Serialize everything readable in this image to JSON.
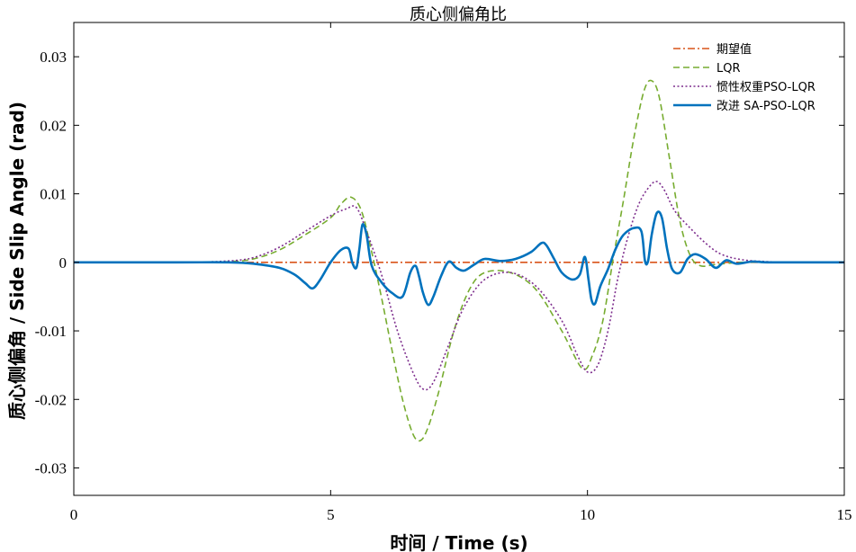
{
  "chart_data": {
    "type": "line",
    "title": "质心侧偏角比",
    "xlabel": "时间 / Time (s)",
    "ylabel": "质心侧偏角 / Side Slip Angle (rad)",
    "xlim": [
      0,
      15
    ],
    "ylim": [
      -0.034,
      0.035
    ],
    "xticks": [
      0,
      5,
      10,
      15
    ],
    "xtick_labels": [
      "0",
      "5",
      "10",
      "15"
    ],
    "yticks": [
      0.03,
      0.02,
      0.01,
      0,
      -0.01,
      -0.02,
      -0.03
    ],
    "ytick_labels": [
      "0.03",
      "0.02",
      "0.01",
      "0",
      "-0.01",
      "-0.02",
      "-0.03"
    ],
    "grid": false,
    "legend_position": "top-right",
    "series": [
      {
        "name": "期望值",
        "color": "#D95319",
        "style": "dashdot",
        "x": [
          0,
          15
        ],
        "y": [
          0,
          0
        ]
      },
      {
        "name": "LQR",
        "color": "#77AC30",
        "style": "dashed",
        "x": [
          0,
          2,
          3,
          3.5,
          4,
          4.5,
          5,
          5.2,
          5.4,
          5.6,
          5.8,
          6.0,
          6.2,
          6.4,
          6.6,
          6.75,
          6.9,
          7.1,
          7.4,
          7.7,
          8.0,
          8.5,
          9.0,
          9.5,
          9.9,
          10.1,
          10.3,
          10.5,
          10.7,
          10.9,
          11.1,
          11.25,
          11.4,
          11.6,
          11.8,
          12.0,
          12.2,
          12.5,
          13.0,
          13.5,
          14,
          15
        ],
        "y": [
          0,
          0,
          0.0001,
          0.0005,
          0.0018,
          0.004,
          0.0065,
          0.0085,
          0.0095,
          0.0075,
          0.0015,
          -0.0055,
          -0.013,
          -0.02,
          -0.025,
          -0.026,
          -0.024,
          -0.019,
          -0.01,
          -0.004,
          -0.0015,
          -0.0015,
          -0.004,
          -0.01,
          -0.0155,
          -0.0135,
          -0.0085,
          0.0005,
          0.009,
          0.018,
          0.025,
          0.0265,
          0.024,
          0.015,
          0.006,
          0.001,
          -0.0005,
          -0.0003,
          0,
          0,
          0,
          0
        ]
      },
      {
        "name": "惯性权重PSO-LQR",
        "color": "#7E2F8E",
        "style": "dotted",
        "x": [
          0,
          2,
          3,
          3.5,
          4,
          4.5,
          5,
          5.3,
          5.5,
          5.7,
          6.0,
          6.3,
          6.6,
          6.8,
          7.0,
          7.3,
          7.6,
          8.0,
          8.5,
          9.0,
          9.5,
          9.8,
          10.0,
          10.2,
          10.4,
          10.6,
          10.8,
          11.0,
          11.2,
          11.35,
          11.5,
          11.7,
          12.0,
          12.3,
          12.6,
          13.0,
          13.5,
          14,
          15
        ],
        "y": [
          0,
          0,
          0.0002,
          0.0007,
          0.0022,
          0.0045,
          0.0068,
          0.0078,
          0.008,
          0.0045,
          -0.002,
          -0.01,
          -0.016,
          -0.0185,
          -0.0175,
          -0.012,
          -0.0065,
          -0.0025,
          -0.0015,
          -0.0035,
          -0.0085,
          -0.0135,
          -0.016,
          -0.015,
          -0.01,
          -0.002,
          0.004,
          0.0085,
          0.011,
          0.0118,
          0.0105,
          0.0075,
          0.005,
          0.0028,
          0.0012,
          0.0004,
          0.0001,
          0,
          0
        ]
      },
      {
        "name": "改进 SA-PSO-LQR",
        "color": "#0072BD",
        "style": "solid",
        "x": [
          0,
          2,
          3,
          3.5,
          4,
          4.3,
          4.5,
          4.65,
          4.8,
          5.0,
          5.2,
          5.35,
          5.42,
          5.5,
          5.56,
          5.62,
          5.7,
          5.8,
          6.0,
          6.2,
          6.4,
          6.55,
          6.65,
          6.72,
          6.8,
          6.9,
          7.0,
          7.15,
          7.3,
          7.45,
          7.6,
          7.8,
          8.0,
          8.3,
          8.6,
          8.9,
          9.1,
          9.2,
          9.35,
          9.5,
          9.7,
          9.85,
          9.95,
          10.02,
          10.08,
          10.15,
          10.25,
          10.4,
          10.55,
          10.7,
          10.9,
          11.05,
          11.12,
          11.18,
          11.25,
          11.35,
          11.45,
          11.55,
          11.65,
          11.8,
          11.95,
          12.1,
          12.3,
          12.5,
          12.7,
          12.9,
          13.2,
          13.5,
          14,
          15
        ],
        "y": [
          0,
          0,
          0,
          -0.0002,
          -0.0008,
          -0.0018,
          -0.003,
          -0.0038,
          -0.0025,
          0,
          0.0018,
          0.002,
          0,
          -0.0008,
          0.002,
          0.0055,
          0.004,
          -0.0005,
          -0.003,
          -0.0045,
          -0.005,
          -0.0015,
          -0.0005,
          -0.002,
          -0.0045,
          -0.0062,
          -0.005,
          -0.002,
          0.0001,
          -0.0008,
          -0.0012,
          -0.0003,
          0.0005,
          0.0002,
          0.0005,
          0.0015,
          0.0028,
          0.0025,
          0.0005,
          -0.0015,
          -0.0025,
          -0.0018,
          0.0008,
          -0.0025,
          -0.0055,
          -0.006,
          -0.0035,
          -0.001,
          0.002,
          0.004,
          0.005,
          0.0045,
          0.0002,
          0.0002,
          0.004,
          0.0072,
          0.0065,
          0.002,
          -0.001,
          -0.0015,
          0.0005,
          0.0012,
          0.0005,
          -0.0008,
          0.0003,
          -0.0002,
          0.0001,
          0,
          0,
          0
        ]
      }
    ]
  }
}
